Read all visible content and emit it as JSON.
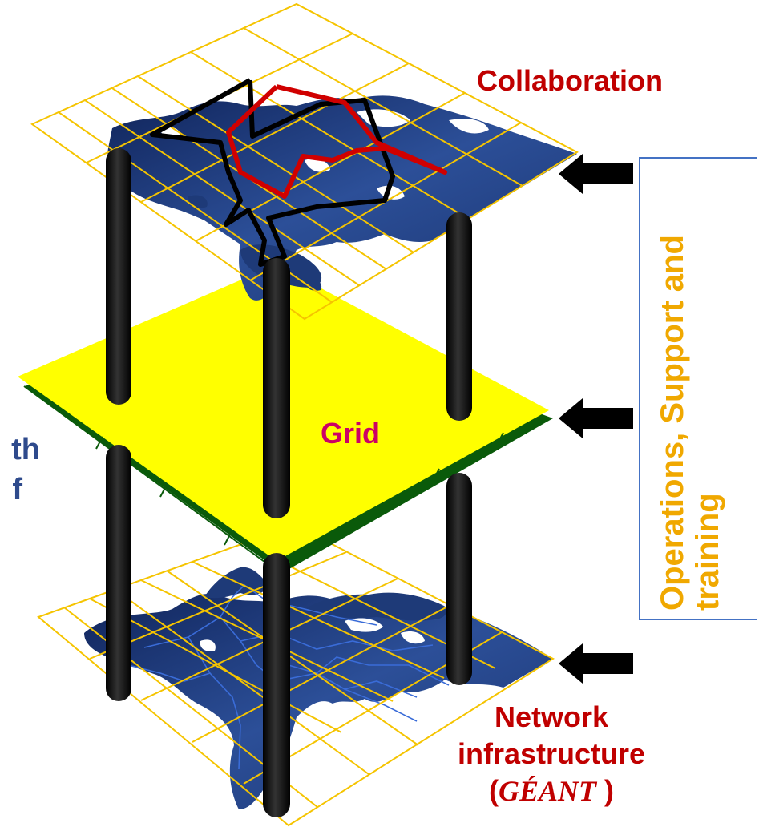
{
  "labels": {
    "collaboration": "Collaboration",
    "grid": "Grid",
    "network_line1": "Network",
    "network_line2": "infrastructure",
    "network_open": "(",
    "network_geant": "GÉANT",
    "network_close": " )",
    "cut_left_1": "th",
    "cut_left_2": "f"
  },
  "side_panel": {
    "line1": "Operations,   Support and",
    "line2": "training"
  },
  "colors": {
    "map_blue": "#1e3a78",
    "grid_yellow": "#f5c400",
    "plane_yellow": "#ffff00",
    "collab_red": "#d00000",
    "pillar_black": "#111111",
    "ops_text": "#f0a800",
    "panel_border": "#4472c4"
  }
}
